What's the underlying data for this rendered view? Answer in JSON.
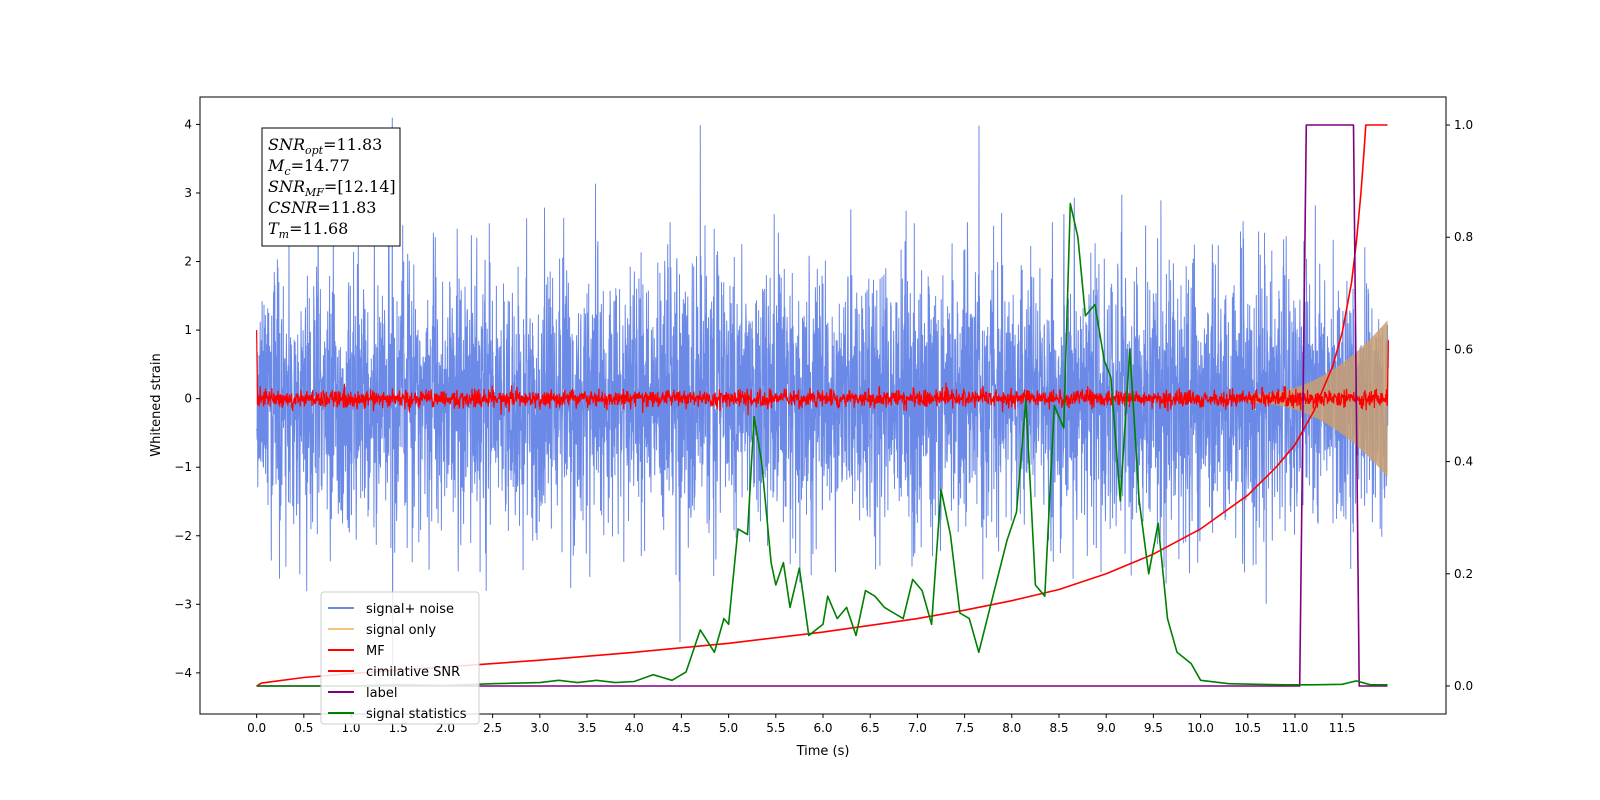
{
  "chart_data": {
    "type": "line",
    "xlabel": "Time (s)",
    "ylabel": "Whitened strain",
    "xlim": [
      -0.6,
      12.6
    ],
    "ylim": [
      -4.6,
      4.4
    ],
    "y2lim": [
      -0.05,
      1.05
    ],
    "x_ticks": [
      0.0,
      0.5,
      1.0,
      1.5,
      2.0,
      2.5,
      3.0,
      3.5,
      4.0,
      4.5,
      5.0,
      5.5,
      6.0,
      6.5,
      7.0,
      7.5,
      8.0,
      8.5,
      9.0,
      9.5,
      10.0,
      10.5,
      11.0,
      11.5
    ],
    "x_tick_labels": [
      "0.0",
      "0.5",
      "1.0",
      "1.5",
      "2.0",
      "2.5",
      "3.0",
      "3.5",
      "4.0",
      "4.5",
      "5.0",
      "5.5",
      "6.0",
      "6.5",
      "7.0",
      "7.5",
      "8.0",
      "8.5",
      "9.0",
      "9.5",
      "10.0",
      "10.5",
      "11.0",
      "11.5"
    ],
    "y_ticks": [
      -4,
      -3,
      -2,
      -1,
      0,
      1,
      2,
      3,
      4
    ],
    "y_tick_labels": [
      "−4",
      "−3",
      "−2",
      "−1",
      "0",
      "1",
      "2",
      "3",
      "4"
    ],
    "y2_ticks": [
      0.0,
      0.2,
      0.4,
      0.6,
      0.8,
      1.0
    ],
    "y2_tick_labels": [
      "0.0",
      "0.2",
      "0.4",
      "0.6",
      "0.8",
      "1.0"
    ],
    "grid": false,
    "legend_position": "lower-left",
    "series": [
      {
        "name": "signal+ noise",
        "color": "#6b89e6",
        "axis": "left",
        "kind": "noise",
        "t_start": 0.0,
        "t_end": 11.99,
        "envelope_typical": 1.9,
        "envelope_peak": 4.1
      },
      {
        "name": "signal only",
        "color": "#f5c47a",
        "axis": "left",
        "kind": "chirp",
        "t_start": 10.5,
        "t_end": 11.99,
        "amplitude_end": 1.1
      },
      {
        "name": "MF",
        "color": "#ff0000",
        "axis": "left",
        "kind": "mf",
        "t_start": 0.0,
        "t_end": 11.99,
        "baseline": 0.0,
        "amplitude": 0.12,
        "start_value": 1.0,
        "end_value": 0.85
      },
      {
        "name": "cimilative SNR",
        "color": "#ff0000",
        "axis": "right",
        "points": [
          [
            0.0,
            0.0
          ],
          [
            0.05,
            0.005
          ],
          [
            0.5,
            0.015
          ],
          [
            1.0,
            0.022
          ],
          [
            2.0,
            0.034
          ],
          [
            3.0,
            0.046
          ],
          [
            4.0,
            0.06
          ],
          [
            5.0,
            0.076
          ],
          [
            6.0,
            0.096
          ],
          [
            7.0,
            0.12
          ],
          [
            7.5,
            0.135
          ],
          [
            8.0,
            0.152
          ],
          [
            8.5,
            0.172
          ],
          [
            9.0,
            0.2
          ],
          [
            9.5,
            0.235
          ],
          [
            10.0,
            0.28
          ],
          [
            10.5,
            0.34
          ],
          [
            10.8,
            0.39
          ],
          [
            11.0,
            0.43
          ],
          [
            11.2,
            0.49
          ],
          [
            11.4,
            0.57
          ],
          [
            11.5,
            0.63
          ],
          [
            11.6,
            0.72
          ],
          [
            11.65,
            0.79
          ],
          [
            11.7,
            0.88
          ],
          [
            11.73,
            0.95
          ],
          [
            11.75,
            1.0
          ],
          [
            11.98,
            1.0
          ]
        ]
      },
      {
        "name": "label",
        "color": "#800080",
        "axis": "right",
        "points": [
          [
            0.0,
            0.0
          ],
          [
            11.05,
            0.0
          ],
          [
            11.12,
            1.0
          ],
          [
            11.62,
            1.0
          ],
          [
            11.68,
            0.0
          ],
          [
            11.98,
            0.0
          ]
        ]
      },
      {
        "name": "signal statistics",
        "color": "#008000",
        "axis": "right",
        "points": [
          [
            0.0,
            0.0
          ],
          [
            0.5,
            0.0
          ],
          [
            1.0,
            0.0
          ],
          [
            1.5,
            0.002
          ],
          [
            2.0,
            0.001
          ],
          [
            2.5,
            0.004
          ],
          [
            3.0,
            0.006
          ],
          [
            3.2,
            0.01
          ],
          [
            3.4,
            0.006
          ],
          [
            3.6,
            0.01
          ],
          [
            3.8,
            0.006
          ],
          [
            4.0,
            0.008
          ],
          [
            4.2,
            0.02
          ],
          [
            4.3,
            0.015
          ],
          [
            4.4,
            0.01
          ],
          [
            4.55,
            0.025
          ],
          [
            4.7,
            0.1
          ],
          [
            4.85,
            0.06
          ],
          [
            4.95,
            0.12
          ],
          [
            5.0,
            0.11
          ],
          [
            5.1,
            0.28
          ],
          [
            5.2,
            0.27
          ],
          [
            5.27,
            0.48
          ],
          [
            5.35,
            0.4
          ],
          [
            5.45,
            0.22
          ],
          [
            5.5,
            0.18
          ],
          [
            5.58,
            0.22
          ],
          [
            5.65,
            0.14
          ],
          [
            5.75,
            0.21
          ],
          [
            5.85,
            0.09
          ],
          [
            6.0,
            0.11
          ],
          [
            6.05,
            0.16
          ],
          [
            6.15,
            0.12
          ],
          [
            6.25,
            0.14
          ],
          [
            6.35,
            0.09
          ],
          [
            6.45,
            0.17
          ],
          [
            6.55,
            0.16
          ],
          [
            6.65,
            0.14
          ],
          [
            6.75,
            0.13
          ],
          [
            6.85,
            0.12
          ],
          [
            6.95,
            0.19
          ],
          [
            7.05,
            0.17
          ],
          [
            7.15,
            0.11
          ],
          [
            7.25,
            0.35
          ],
          [
            7.35,
            0.27
          ],
          [
            7.45,
            0.13
          ],
          [
            7.55,
            0.12
          ],
          [
            7.65,
            0.06
          ],
          [
            7.8,
            0.16
          ],
          [
            7.95,
            0.26
          ],
          [
            8.05,
            0.31
          ],
          [
            8.15,
            0.51
          ],
          [
            8.25,
            0.18
          ],
          [
            8.35,
            0.16
          ],
          [
            8.45,
            0.5
          ],
          [
            8.55,
            0.46
          ],
          [
            8.62,
            0.86
          ],
          [
            8.7,
            0.8
          ],
          [
            8.78,
            0.66
          ],
          [
            8.88,
            0.68
          ],
          [
            8.98,
            0.58
          ],
          [
            9.05,
            0.55
          ],
          [
            9.15,
            0.33
          ],
          [
            9.25,
            0.6
          ],
          [
            9.35,
            0.33
          ],
          [
            9.45,
            0.2
          ],
          [
            9.55,
            0.29
          ],
          [
            9.65,
            0.12
          ],
          [
            9.75,
            0.06
          ],
          [
            9.9,
            0.04
          ],
          [
            10.0,
            0.01
          ],
          [
            10.3,
            0.004
          ],
          [
            10.6,
            0.003
          ],
          [
            10.9,
            0.002
          ],
          [
            11.2,
            0.002
          ],
          [
            11.5,
            0.003
          ],
          [
            11.65,
            0.009
          ],
          [
            11.8,
            0.002
          ],
          [
            11.98,
            0.002
          ]
        ]
      }
    ]
  },
  "annotation": {
    "lines": [
      {
        "base": "SNR",
        "sub": "opt",
        "rest": "=11.83"
      },
      {
        "base": "M",
        "sub": "c",
        "rest": "=14.77"
      },
      {
        "base": "SNR",
        "sub": "MF",
        "rest": "=[12.14]"
      },
      {
        "base": "CSNR",
        "sub": "",
        "rest": "=11.83"
      },
      {
        "base": "T",
        "sub": "m",
        "rest": "=11.68"
      }
    ]
  },
  "legend": {
    "items": [
      "signal+ noise",
      "signal only",
      "MF",
      "cimilative SNR",
      "label",
      "signal statistics"
    ],
    "colors": [
      "#6b89e6",
      "#f5c47a",
      "#ff0000",
      "#ff0000",
      "#800080",
      "#008000"
    ]
  }
}
